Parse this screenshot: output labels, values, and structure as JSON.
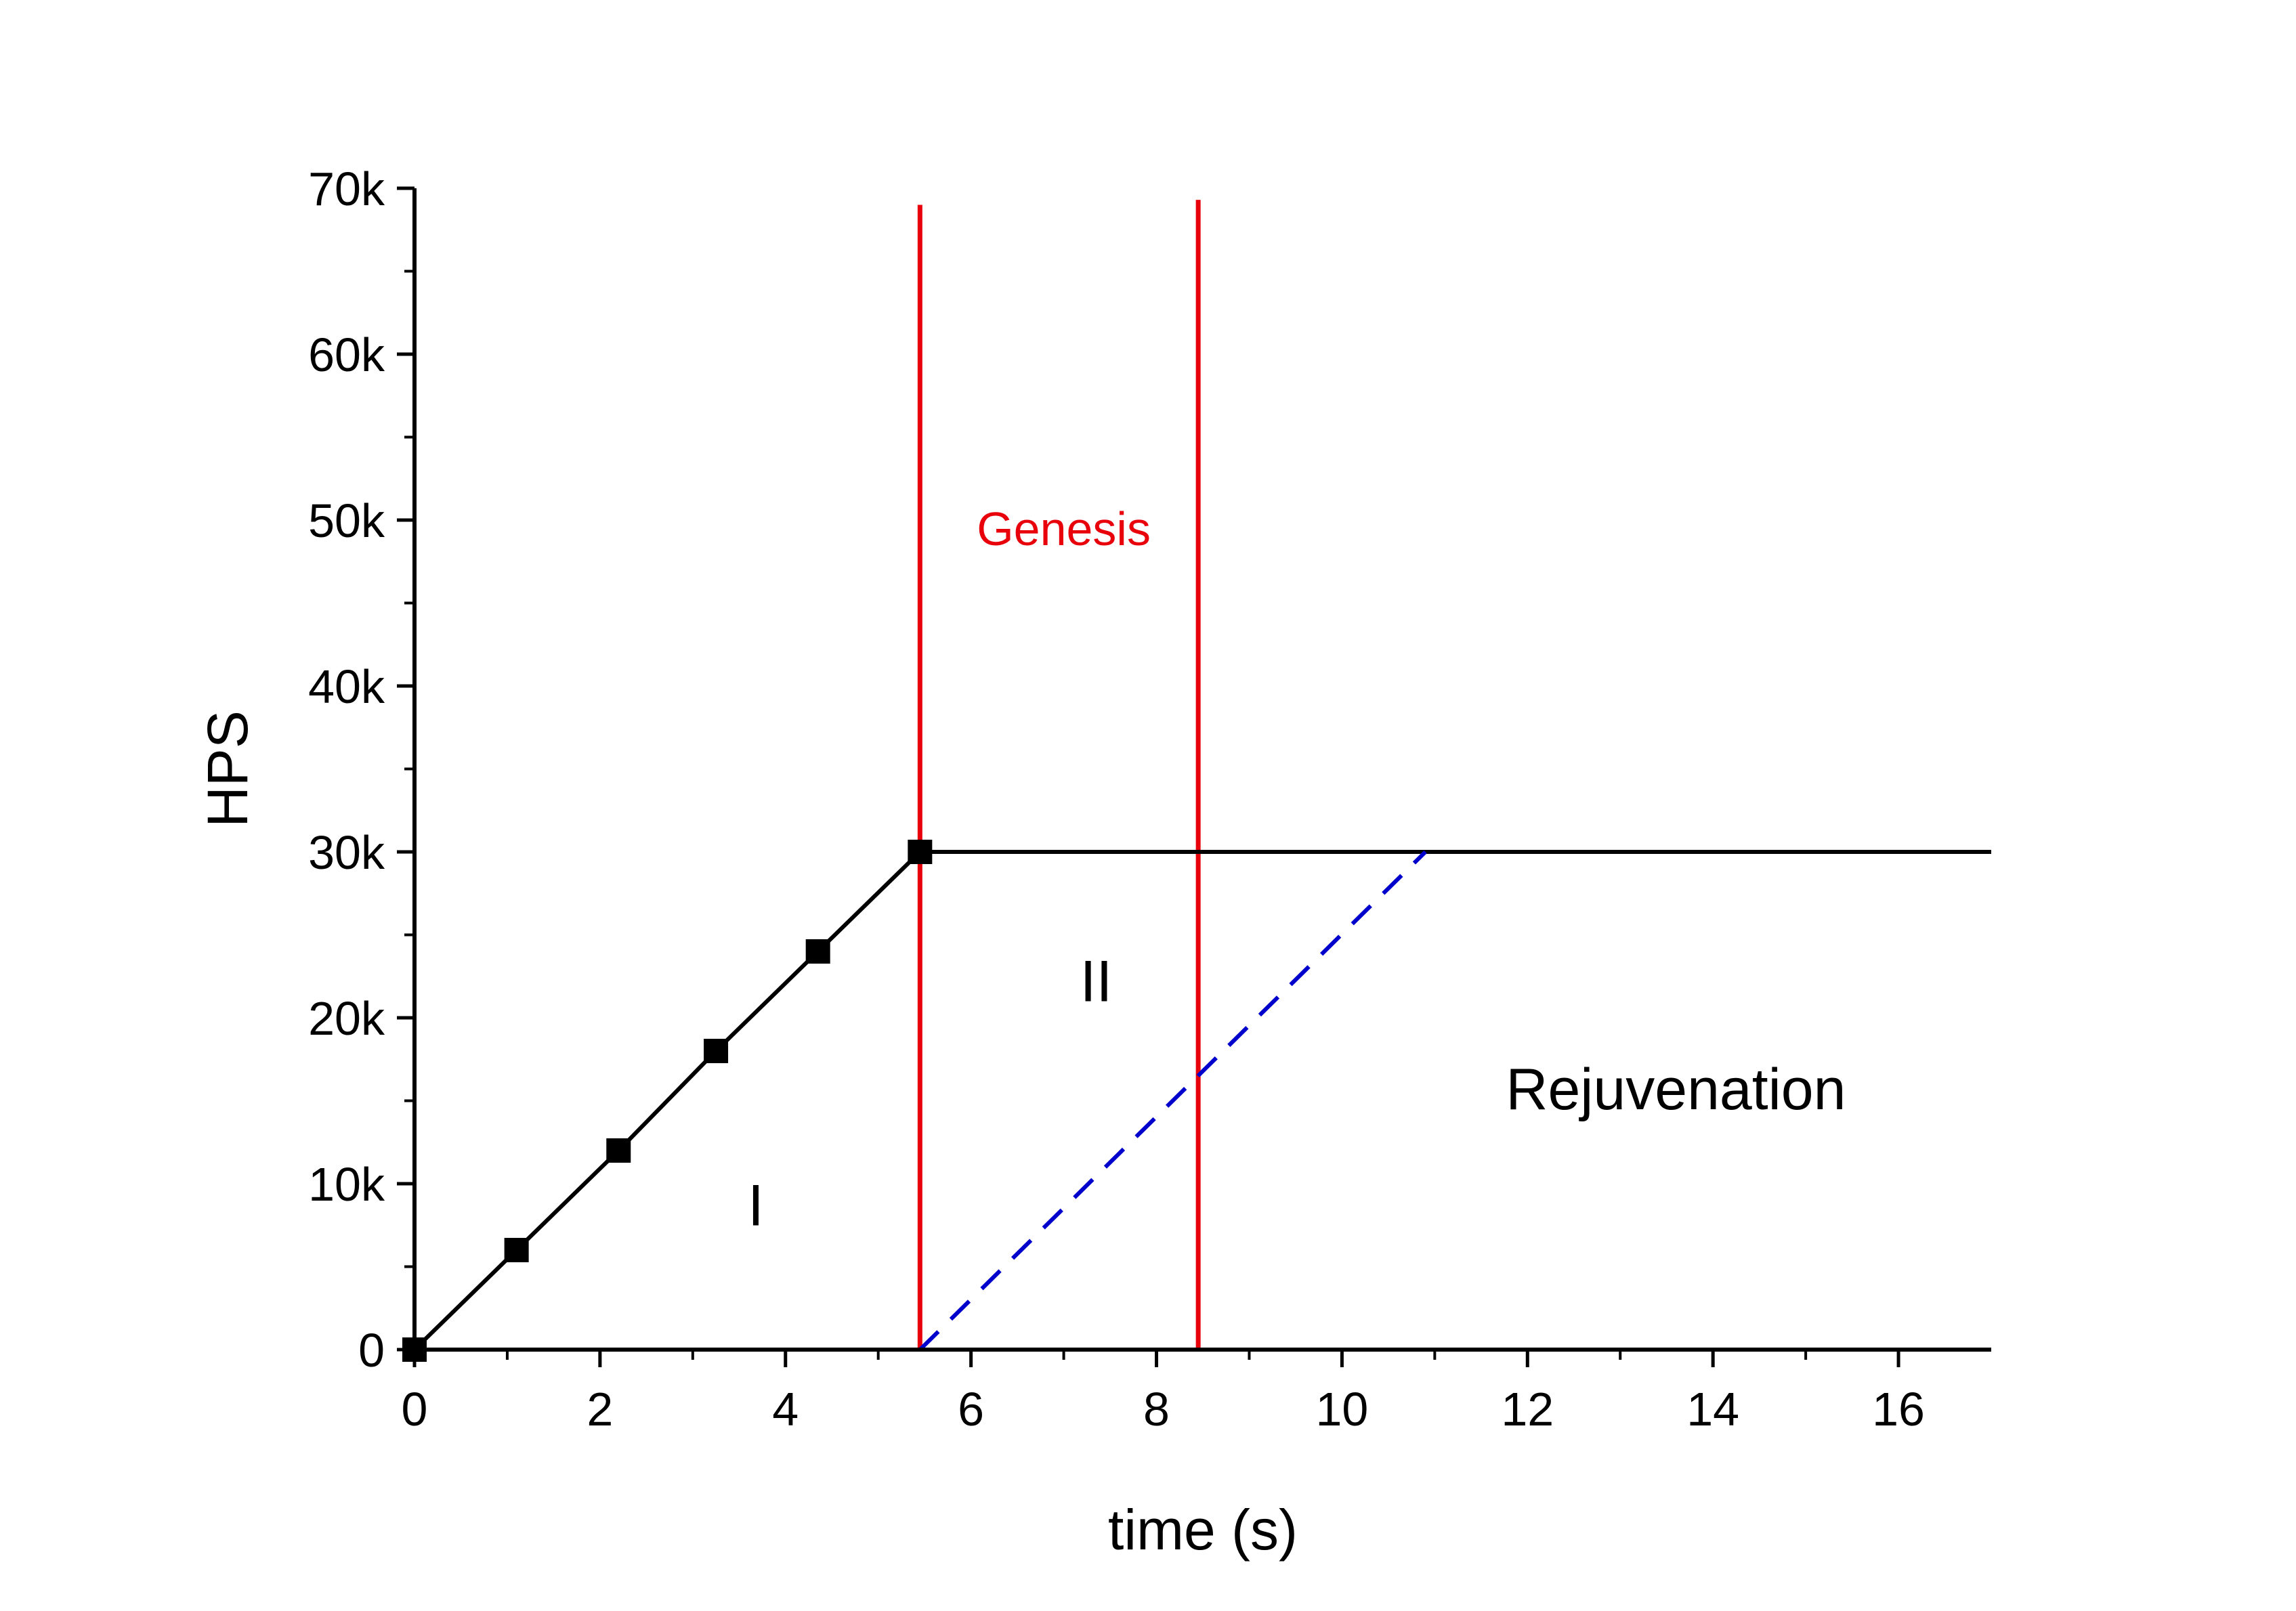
{
  "chart_data": {
    "type": "line",
    "title": "",
    "xlabel": "time (s)",
    "ylabel": "HPS",
    "xlim": [
      0,
      17
    ],
    "ylim": [
      0,
      70000
    ],
    "grid": false,
    "x_ticks": [
      0,
      2,
      4,
      6,
      8,
      10,
      12,
      14,
      16
    ],
    "x_tick_labels": [
      "0",
      "2",
      "4",
      "6",
      "8",
      "10",
      "12",
      "14",
      "16"
    ],
    "y_ticks": [
      0,
      10000,
      20000,
      30000,
      40000,
      50000,
      60000,
      70000
    ],
    "y_tick_labels": [
      "0",
      "10k",
      "20k",
      "30k",
      "40k",
      "50k",
      "60k",
      "70k"
    ],
    "series": [
      {
        "style": "solid-markers",
        "color": "#000000",
        "x": [
          0,
          1.1,
          2.2,
          3.25,
          4.35,
          5.45
        ],
        "y": [
          0,
          6000,
          12000,
          18000,
          24000,
          30000
        ]
      },
      {
        "style": "solid",
        "color": "#000000",
        "x": [
          5.45,
          17
        ],
        "y": [
          30000,
          30000
        ]
      },
      {
        "style": "dashed",
        "color": "#0000cc",
        "x": [
          5.45,
          10.9
        ],
        "y": [
          0,
          30000
        ]
      }
    ],
    "vlines": [
      {
        "x": 5.45,
        "y_top": 69000,
        "color": "#e8000b"
      },
      {
        "x": 8.45,
        "y_top": 69300,
        "color": "#e8000b"
      }
    ],
    "annotations": [
      {
        "text": "Genesis",
        "x": 7.0,
        "y": 48500,
        "color": "#e8000b",
        "size": "small"
      },
      {
        "text": "II",
        "x": 7.35,
        "y": 21000,
        "color": "#000000",
        "size": "large"
      },
      {
        "text": "I",
        "x": 3.68,
        "y": 7500,
        "color": "#000000",
        "size": "large"
      },
      {
        "text": "Rejuvenation",
        "x": 13.6,
        "y": 14500,
        "color": "#000000",
        "size": "large"
      }
    ]
  }
}
